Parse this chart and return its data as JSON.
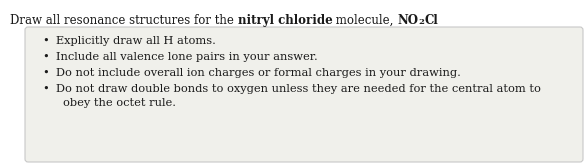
{
  "title_plain": "Draw all resonance structures for the ",
  "title_bold1": "nitryl chloride",
  "title_mid": " molecule, ",
  "title_formula_NO": "NO",
  "title_formula_sub": "2",
  "title_formula_Cl": "Cl",
  "bullet_lines": [
    "Explicitly draw all H atoms.",
    "Include all valence lone pairs in your answer.",
    "Do not include overall ion charges or formal charges in your drawing.",
    "Do not draw double bonds to oxygen unless they are needed for the central atom to",
    "obey the octet rule."
  ],
  "bg_color": "#ffffff",
  "box_bg_color": "#f0f0eb",
  "box_edge_color": "#c8c8c8",
  "text_color": "#1a1a1a",
  "font_size_title": 8.5,
  "font_size_bullet": 8.2,
  "fig_width": 5.88,
  "fig_height": 1.63,
  "dpi": 100
}
